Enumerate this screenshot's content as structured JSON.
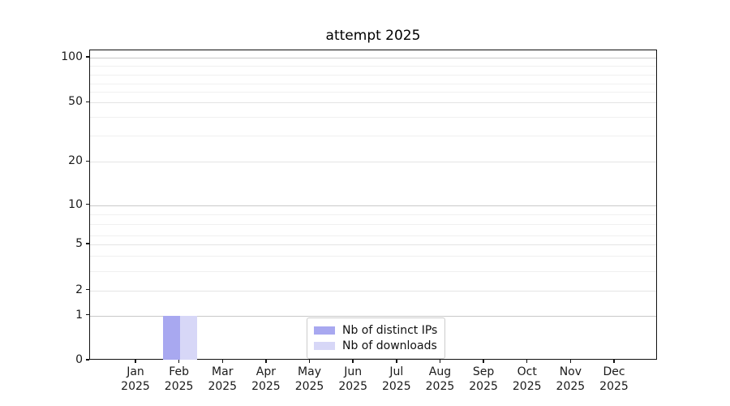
{
  "title": "attempt 2025",
  "chart_data": {
    "type": "bar",
    "title": "attempt 2025",
    "categories": [
      "Jan 2025",
      "Feb 2025",
      "Mar 2025",
      "Apr 2025",
      "May 2025",
      "Jun 2025",
      "Jul 2025",
      "Aug 2025",
      "Sep 2025",
      "Oct 2025",
      "Nov 2025",
      "Dec 2025"
    ],
    "series": [
      {
        "name": "Nb of distinct IPs",
        "color": "#a8a8f0",
        "values": [
          0,
          1,
          0,
          0,
          0,
          0,
          0,
          0,
          0,
          0,
          0,
          0
        ]
      },
      {
        "name": "Nb of downloads",
        "color": "#d7d7f7",
        "values": [
          0,
          1,
          0,
          0,
          0,
          0,
          0,
          0,
          0,
          0,
          0,
          0
        ]
      }
    ],
    "xlabel": "",
    "ylabel": "",
    "yscale": "symlog",
    "ytick_values": [
      0,
      1,
      2,
      5,
      10,
      20,
      50,
      100
    ],
    "ytick_labels": [
      "0",
      "1",
      "2",
      "5",
      "10",
      "20",
      "50",
      "100"
    ],
    "ylim": [
      0,
      112
    ],
    "grid": "both",
    "legend_position": "lower center"
  }
}
